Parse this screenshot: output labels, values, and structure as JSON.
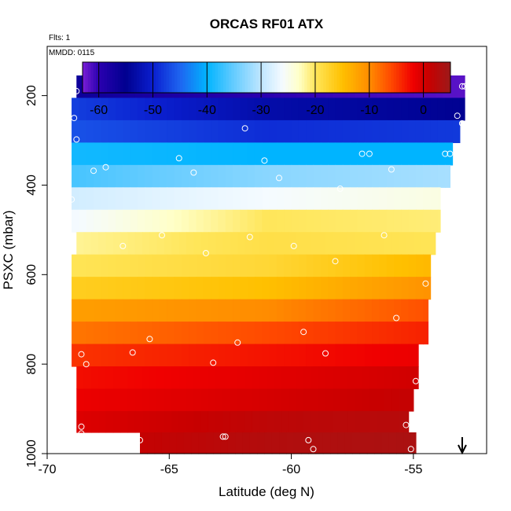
{
  "chart_data": {
    "type": "heatmap",
    "title": "ORCAS RF01 ATX",
    "annotations": [
      "Flts: 1",
      "MMDD: 0115"
    ],
    "xlabel": "Latitude (deg N)",
    "ylabel": "PSXC (mbar)",
    "xlim": [
      -70,
      -52
    ],
    "ylim": [
      1000,
      90
    ],
    "x_ticks": [
      -70,
      -65,
      -60,
      -55
    ],
    "x_tick_labels": [
      "-70",
      "-65",
      "-60",
      "-55"
    ],
    "y_ticks": [
      200,
      400,
      600,
      800,
      1000
    ],
    "y_tick_labels": [
      "200",
      "400",
      "600",
      "800",
      "1000"
    ],
    "colorbar": {
      "range": [
        -63,
        5
      ],
      "ticks": [
        -60,
        -50,
        -40,
        -30,
        -20,
        -10,
        0
      ],
      "tick_labels": [
        "-60",
        "-50",
        "-40",
        "-30",
        "-20",
        "-10",
        "0"
      ],
      "stops": [
        {
          "v": -63,
          "c": "#7a1fd6"
        },
        {
          "v": -60,
          "c": "#2a00b0"
        },
        {
          "v": -55,
          "c": "#00008f"
        },
        {
          "v": -50,
          "c": "#0a1fcf"
        },
        {
          "v": -45,
          "c": "#1e64f0"
        },
        {
          "v": -40,
          "c": "#00b4ff"
        },
        {
          "v": -35,
          "c": "#66ccff"
        },
        {
          "v": -30,
          "c": "#bfe6ff"
        },
        {
          "v": -26,
          "c": "#f5fbff"
        },
        {
          "v": -23,
          "c": "#ffffc8"
        },
        {
          "v": -20,
          "c": "#ffe65a"
        },
        {
          "v": -15,
          "c": "#ffc000"
        },
        {
          "v": -10,
          "c": "#ff8c00"
        },
        {
          "v": -6,
          "c": "#ff4a00"
        },
        {
          "v": -2,
          "c": "#f00000"
        },
        {
          "v": 1,
          "c": "#c80000"
        },
        {
          "v": 5,
          "c": "#9c1a1a"
        }
      ]
    },
    "rows": [
      {
        "p": 180,
        "lat_min": -68.8,
        "lat_max": -52.9,
        "T": [
          -56,
          -60,
          -62
        ]
      },
      {
        "p": 230,
        "lat_min": -69.0,
        "lat_max": -52.9,
        "T": [
          -47,
          -53,
          -55
        ]
      },
      {
        "p": 280,
        "lat_min": -69.0,
        "lat_max": -53.1,
        "T": [
          -46,
          -49,
          -48
        ]
      },
      {
        "p": 330,
        "lat_min": -69.0,
        "lat_max": -53.4,
        "T": [
          -39,
          -40,
          -40
        ]
      },
      {
        "p": 380,
        "lat_min": -69.0,
        "lat_max": -53.5,
        "T": [
          -37,
          -33,
          -31
        ]
      },
      {
        "p": 430,
        "lat_min": -69.0,
        "lat_max": -53.9,
        "T": [
          -29,
          -26,
          -24
        ]
      },
      {
        "p": 480,
        "lat_min": -69.0,
        "lat_max": -53.9,
        "T": [
          -27,
          -20,
          -21
        ]
      },
      {
        "p": 530,
        "lat_min": -68.8,
        "lat_max": -54.1,
        "T": [
          -22,
          -19,
          -20
        ]
      },
      {
        "p": 580,
        "lat_min": -69.0,
        "lat_max": -54.3,
        "T": [
          -20,
          -18,
          -13
        ]
      },
      {
        "p": 630,
        "lat_min": -69.0,
        "lat_max": -54.3,
        "T": [
          -17,
          -15,
          -9
        ]
      },
      {
        "p": 680,
        "lat_min": -69.0,
        "lat_max": -54.4,
        "T": [
          -12,
          -10,
          -5
        ]
      },
      {
        "p": 730,
        "lat_min": -69.0,
        "lat_max": -54.4,
        "T": [
          -9,
          -6,
          -3
        ]
      },
      {
        "p": 780,
        "lat_min": -69.0,
        "lat_max": -54.8,
        "T": [
          -5,
          -3,
          -1
        ]
      },
      {
        "p": 830,
        "lat_min": -68.8,
        "lat_max": -54.8,
        "T": [
          -3,
          -1,
          1
        ]
      },
      {
        "p": 880,
        "lat_min": -68.8,
        "lat_max": -55.0,
        "T": [
          -2,
          0,
          2
        ]
      },
      {
        "p": 930,
        "lat_min": -68.8,
        "lat_max": -55.2,
        "T": [
          -1,
          2,
          3
        ]
      },
      {
        "p": 975,
        "lat_min": -66.2,
        "lat_max": -54.9,
        "T": [
          0,
          3,
          4
        ]
      }
    ],
    "points": [
      [
        -68.8,
        190
      ],
      [
        -66.0,
        180
      ],
      [
        -60.4,
        179
      ],
      [
        -56.2,
        179
      ],
      [
        -53.0,
        179
      ],
      [
        -52.9,
        179
      ],
      [
        -68.9,
        250
      ],
      [
        -53.2,
        245
      ],
      [
        -61.9,
        273
      ],
      [
        -53.0,
        262
      ],
      [
        -68.8,
        298
      ],
      [
        -64.6,
        340
      ],
      [
        -61.1,
        345
      ],
      [
        -57.1,
        330
      ],
      [
        -56.8,
        330
      ],
      [
        -53.7,
        330
      ],
      [
        -53.5,
        330
      ],
      [
        -68.1,
        368
      ],
      [
        -67.6,
        360
      ],
      [
        -64.0,
        372
      ],
      [
        -60.5,
        384
      ],
      [
        -55.9,
        365
      ],
      [
        -69.0,
        432
      ],
      [
        -58.0,
        408
      ],
      [
        -65.3,
        512
      ],
      [
        -61.7,
        516
      ],
      [
        -56.2,
        512
      ],
      [
        -66.9,
        536
      ],
      [
        -59.9,
        536
      ],
      [
        -63.5,
        552
      ],
      [
        -58.2,
        570
      ],
      [
        -54.5,
        620
      ],
      [
        -55.7,
        697
      ],
      [
        -59.5,
        728
      ],
      [
        -65.8,
        744
      ],
      [
        -62.2,
        752
      ],
      [
        -68.6,
        778
      ],
      [
        -66.5,
        774
      ],
      [
        -58.6,
        776
      ],
      [
        -68.4,
        800
      ],
      [
        -63.2,
        797
      ],
      [
        -54.9,
        838
      ],
      [
        -55.3,
        936
      ],
      [
        -68.6,
        940
      ],
      [
        -68.6,
        955
      ],
      [
        -66.2,
        970
      ],
      [
        -62.8,
        962
      ],
      [
        -62.7,
        962
      ],
      [
        -59.3,
        970
      ],
      [
        -59.1,
        990
      ],
      [
        -55.1,
        990
      ]
    ],
    "marker": {
      "lat": -53.0,
      "symbol": "down-arrow"
    }
  }
}
